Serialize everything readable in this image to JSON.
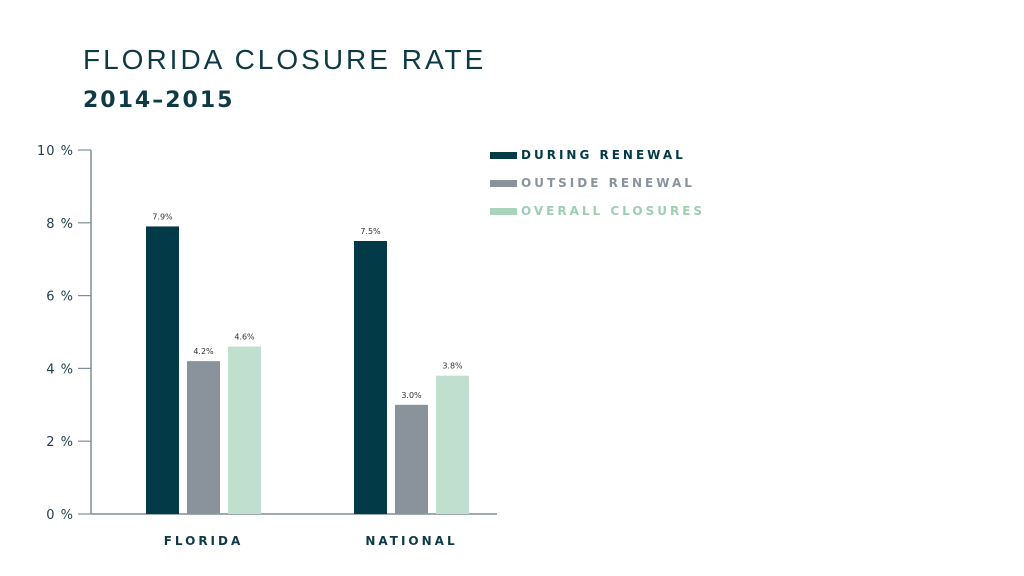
{
  "chart_data": {
    "type": "bar",
    "title": "FLORIDA CLOSURE RATE",
    "subtitle": "2014–2015",
    "xlabel": "",
    "ylabel": "",
    "categories": [
      "FLORIDA",
      "NATIONAL"
    ],
    "series": [
      {
        "name": "DURING RENEWAL",
        "color": "#033a47",
        "values": [
          7.9,
          7.5
        ],
        "labels": [
          "7.9%",
          "7.5%"
        ]
      },
      {
        "name": "OUTSIDE RENEWAL",
        "color": "#8a939c",
        "values": [
          4.2,
          3.0
        ],
        "labels": [
          "4.2%",
          "3.0%"
        ]
      },
      {
        "name": "OVERALL CLOSURES",
        "color": "#c1dfcf",
        "text_color": "#9ccfb2",
        "values": [
          4.6,
          3.8
        ],
        "labels": [
          "4.6%",
          "3.8%"
        ]
      }
    ],
    "ylim": [
      0,
      10
    ],
    "yticks": [
      0,
      2,
      4,
      6,
      8,
      10
    ],
    "ytick_labels": [
      "0 %",
      "2 %",
      "4 %",
      "6 %",
      "8 %",
      "10 %"
    ],
    "grid": false,
    "legend_position": "top-right"
  }
}
